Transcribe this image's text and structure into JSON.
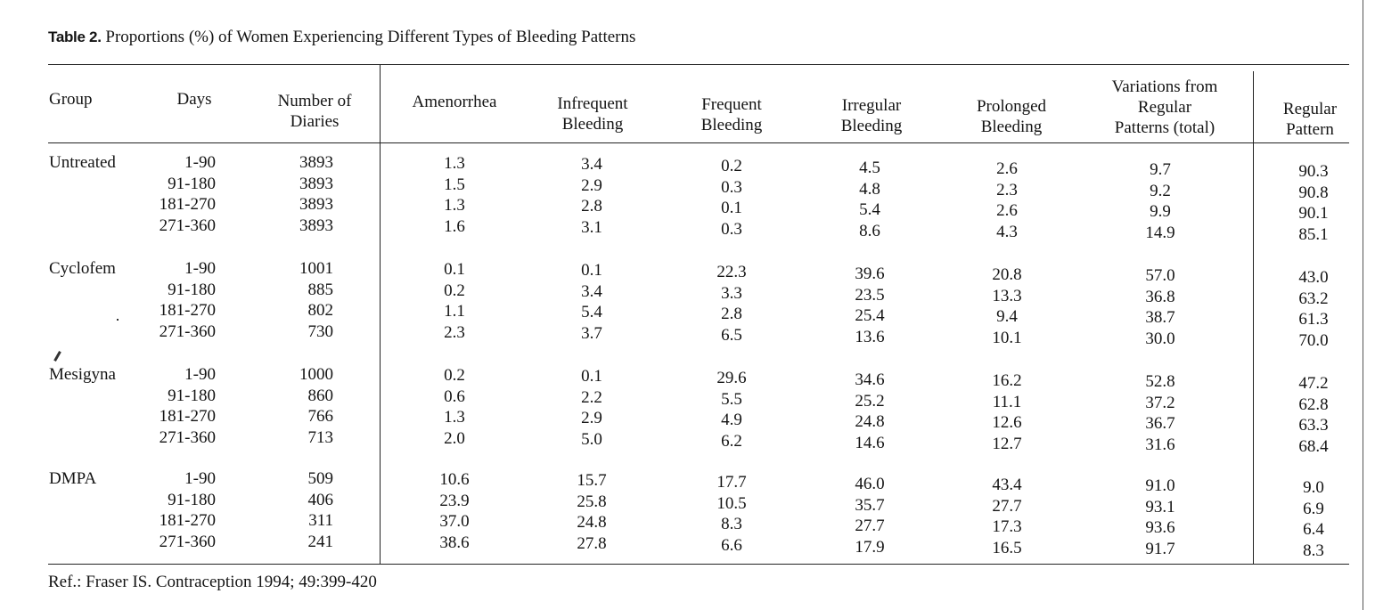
{
  "caption": {
    "label": "Table 2.",
    "title": "Proportions (%) of Women Experiencing Different Types of Bleeding Patterns"
  },
  "headers": {
    "group": "Group",
    "days": "Days",
    "diaries": [
      "Number of",
      "Diaries"
    ],
    "amenorrhea": "Amenorrhea",
    "infrequent": [
      "Infrequent",
      "Bleeding"
    ],
    "frequent": [
      "Frequent",
      "Bleeding"
    ],
    "irregular": [
      "Irregular",
      "Bleeding"
    ],
    "prolonged": [
      "Prolonged",
      "Bleeding"
    ],
    "variations": [
      "Variations from",
      "Regular",
      "Patterns (total)"
    ],
    "regular": [
      "Regular",
      "Pattern"
    ]
  },
  "groups": [
    {
      "name": "Untreated",
      "rows": [
        {
          "days": "1-90",
          "diaries": "3893",
          "amenorrhea": "1.3",
          "infrequent": "3.4",
          "frequent": "0.2",
          "irregular": "4.5",
          "prolonged": "2.6",
          "variations": "9.7",
          "regular": "90.3"
        },
        {
          "days": "91-180",
          "diaries": "3893",
          "amenorrhea": "1.5",
          "infrequent": "2.9",
          "frequent": "0.3",
          "irregular": "4.8",
          "prolonged": "2.3",
          "variations": "9.2",
          "regular": "90.8"
        },
        {
          "days": "181-270",
          "diaries": "3893",
          "amenorrhea": "1.3",
          "infrequent": "2.8",
          "frequent": "0.1",
          "irregular": "5.4",
          "prolonged": "2.6",
          "variations": "9.9",
          "regular": "90.1"
        },
        {
          "days": "271-360",
          "diaries": "3893",
          "amenorrhea": "1.6",
          "infrequent": "3.1",
          "frequent": "0.3",
          "irregular": "8.6",
          "prolonged": "4.3",
          "variations": "14.9",
          "regular": "85.1"
        }
      ]
    },
    {
      "name": "Cyclofem",
      "rows": [
        {
          "days": "1-90",
          "diaries": "1001",
          "amenorrhea": "0.1",
          "infrequent": "0.1",
          "frequent": "22.3",
          "irregular": "39.6",
          "prolonged": "20.8",
          "variations": "57.0",
          "regular": "43.0"
        },
        {
          "days": "91-180",
          "diaries": "885",
          "amenorrhea": "0.2",
          "infrequent": "3.4",
          "frequent": "3.3",
          "irregular": "23.5",
          "prolonged": "13.3",
          "variations": "36.8",
          "regular": "63.2"
        },
        {
          "days": "181-270",
          "diaries": "802",
          "amenorrhea": "1.1",
          "infrequent": "5.4",
          "frequent": "2.8",
          "irregular": "25.4",
          "prolonged": "9.4",
          "variations": "38.7",
          "regular": "61.3"
        },
        {
          "days": "271-360",
          "diaries": "730",
          "amenorrhea": "2.3",
          "infrequent": "3.7",
          "frequent": "6.5",
          "irregular": "13.6",
          "prolonged": "10.1",
          "variations": "30.0",
          "regular": "70.0"
        }
      ]
    },
    {
      "name": "Mesigyna",
      "rows": [
        {
          "days": "1-90",
          "diaries": "1000",
          "amenorrhea": "0.2",
          "infrequent": "0.1",
          "frequent": "29.6",
          "irregular": "34.6",
          "prolonged": "16.2",
          "variations": "52.8",
          "regular": "47.2"
        },
        {
          "days": "91-180",
          "diaries": "860",
          "amenorrhea": "0.6",
          "infrequent": "2.2",
          "frequent": "5.5",
          "irregular": "25.2",
          "prolonged": "11.1",
          "variations": "37.2",
          "regular": "62.8"
        },
        {
          "days": "181-270",
          "diaries": "766",
          "amenorrhea": "1.3",
          "infrequent": "2.9",
          "frequent": "4.9",
          "irregular": "24.8",
          "prolonged": "12.6",
          "variations": "36.7",
          "regular": "63.3"
        },
        {
          "days": "271-360",
          "diaries": "713",
          "amenorrhea": "2.0",
          "infrequent": "5.0",
          "frequent": "6.2",
          "irregular": "14.6",
          "prolonged": "12.7",
          "variations": "31.6",
          "regular": "68.4"
        }
      ]
    },
    {
      "name": "DMPA",
      "rows": [
        {
          "days": "1-90",
          "diaries": "509",
          "amenorrhea": "10.6",
          "infrequent": "15.7",
          "frequent": "17.7",
          "irregular": "46.0",
          "prolonged": "43.4",
          "variations": "91.0",
          "regular": "9.0"
        },
        {
          "days": "91-180",
          "diaries": "406",
          "amenorrhea": "23.9",
          "infrequent": "25.8",
          "frequent": "10.5",
          "irregular": "35.7",
          "prolonged": "27.7",
          "variations": "93.1",
          "regular": "6.9"
        },
        {
          "days": "181-270",
          "diaries": "311",
          "amenorrhea": "37.0",
          "infrequent": "24.8",
          "frequent": "8.3",
          "irregular": "27.7",
          "prolonged": "17.3",
          "variations": "93.6",
          "regular": "6.4"
        },
        {
          "days": "271-360",
          "diaries": "241",
          "amenorrhea": "38.6",
          "infrequent": "27.8",
          "frequent": "6.6",
          "irregular": "17.9",
          "prolonged": "16.5",
          "variations": "91.7",
          "regular": "8.3"
        }
      ]
    }
  ],
  "reference": "Ref.: Fraser IS. Contraception 1994; 49:399-420"
}
